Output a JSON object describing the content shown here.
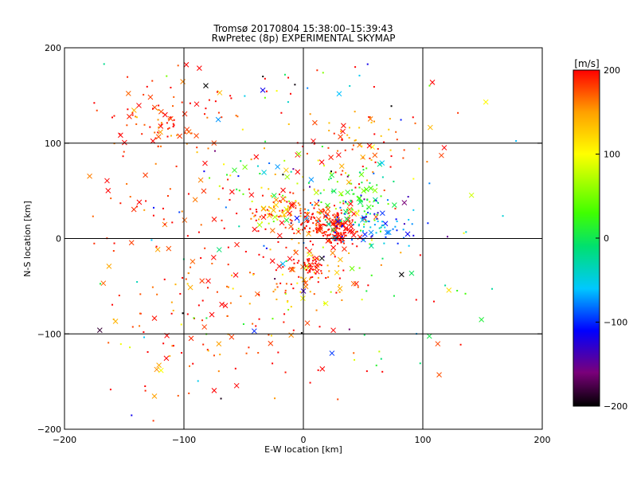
{
  "chart_data": {
    "type": "scatter",
    "title_line1": "Tromsø 20170804 15:38:00–15:39:43",
    "title_line2": "RwPretec (8p) EXPERIMENTAL SKYMAP",
    "xlabel": "E-W location [km]",
    "ylabel": "N-S location [km]",
    "xlim": [
      -200,
      200
    ],
    "ylim": [
      -200,
      200
    ],
    "x_ticks": [
      -200,
      -100,
      0,
      100,
      200
    ],
    "y_ticks": [
      -200,
      -100,
      0,
      100,
      200
    ],
    "x_tick_labels": [
      "−200",
      "−100",
      "0",
      "100",
      "200"
    ],
    "y_tick_labels": [
      "−200",
      "−100",
      "0",
      "100",
      "200"
    ],
    "grid_lines_x": [
      -100,
      0,
      100
    ],
    "grid_lines_y": [
      -100,
      0,
      100
    ],
    "grid": true,
    "colorbar": {
      "unit_label": "[m/s]",
      "range": [
        -200,
        200
      ],
      "ticks": [
        200,
        100,
        0,
        -100,
        -200
      ],
      "tick_labels": [
        "200",
        "100",
        "0",
        "−100",
        "−200"
      ],
      "colors": [
        {
          "value": -200,
          "color": "#000000"
        },
        {
          "value": -160,
          "color": "#7a007a"
        },
        {
          "value": -110,
          "color": "#0000ff"
        },
        {
          "value": -60,
          "color": "#00c8ff"
        },
        {
          "value": -10,
          "color": "#00e070"
        },
        {
          "value": 30,
          "color": "#40ff00"
        },
        {
          "value": 100,
          "color": "#ffff00"
        },
        {
          "value": 150,
          "color": "#ffa000"
        },
        {
          "value": 200,
          "color": "#ff0000"
        }
      ]
    },
    "clusters": [
      {
        "cx": -115,
        "cy": 125,
        "sx": 28,
        "sy": 18,
        "n": 90,
        "v": 185,
        "vs": 25
      },
      {
        "cx": 45,
        "cy": 95,
        "sx": 30,
        "sy": 18,
        "n": 70,
        "v": 180,
        "vs": 40
      },
      {
        "cx": 20,
        "cy": 18,
        "sx": 12,
        "sy": 8,
        "n": 130,
        "v": 195,
        "vs": 20
      },
      {
        "cx": 30,
        "cy": 5,
        "sx": 8,
        "sy": 6,
        "n": 60,
        "v": 200,
        "vs": 10
      },
      {
        "cx": 40,
        "cy": 40,
        "sx": 18,
        "sy": 18,
        "n": 80,
        "v": 15,
        "vs": 25
      },
      {
        "cx": 60,
        "cy": 15,
        "sx": 25,
        "sy": 12,
        "n": 80,
        "v": -90,
        "vs": 35
      },
      {
        "cx": -20,
        "cy": 30,
        "sx": 15,
        "sy": 12,
        "n": 90,
        "v": 170,
        "vs": 60
      },
      {
        "cx": 5,
        "cy": -35,
        "sx": 20,
        "sy": 25,
        "n": 110,
        "v": 175,
        "vs": 45
      },
      {
        "cx": 5,
        "cy": -30,
        "sx": 5,
        "sy": 6,
        "n": 30,
        "v": 200,
        "vs": 5
      },
      {
        "cx": -90,
        "cy": -75,
        "sx": 40,
        "sy": 45,
        "n": 110,
        "v": 180,
        "vs": 35
      },
      {
        "cx": -130,
        "cy": 40,
        "sx": 40,
        "sy": 30,
        "n": 45,
        "v": 190,
        "vs": 20
      },
      {
        "cx": 0,
        "cy": 0,
        "sx": 95,
        "sy": 95,
        "n": 170,
        "v": 80,
        "vs": 160
      },
      {
        "cx": -20,
        "cy": 60,
        "sx": 25,
        "sy": 20,
        "n": 50,
        "v": 50,
        "vs": 120
      },
      {
        "cx": 0,
        "cy": 160,
        "sx": 60,
        "sy": 25,
        "n": 30,
        "v": 100,
        "vs": 200
      }
    ]
  }
}
